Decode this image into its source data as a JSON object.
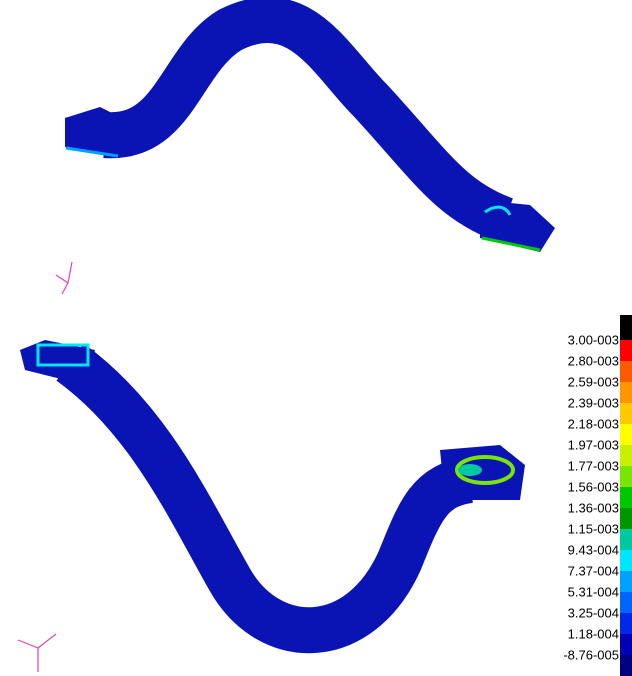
{
  "legend": {
    "labels": [
      "3.00-003",
      "2.80-003",
      "2.59-003",
      "2.39-003",
      "2.18-003",
      "1.97-003",
      "1.77-003",
      "1.56-003",
      "1.36-003",
      "1.15-003",
      "9.43-004",
      "7.37-004",
      "5.31-004",
      "3.25-004",
      "1.18-004",
      "-8.76-005"
    ],
    "colors": [
      "#000000",
      "#ff0000",
      "#ff5a00",
      "#ff9600",
      "#ffc800",
      "#ffff00",
      "#c8f000",
      "#78e600",
      "#00c800",
      "#009600",
      "#00c8a0",
      "#00e6ff",
      "#00a0ff",
      "#0064ff",
      "#0028e6",
      "#0000b4",
      "#000080"
    ]
  }
}
